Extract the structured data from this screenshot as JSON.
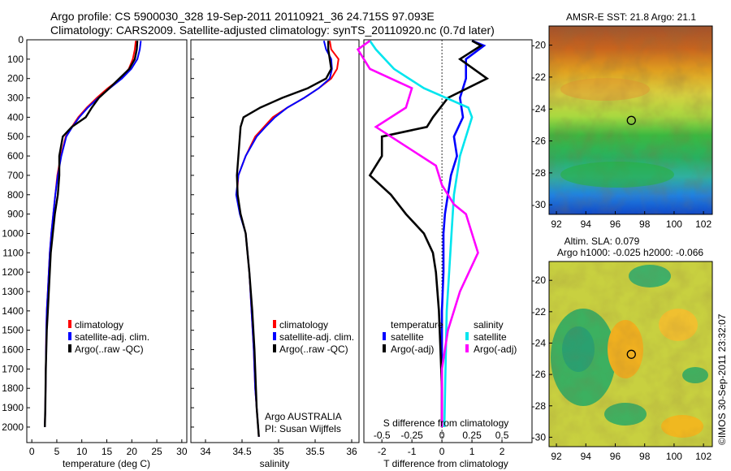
{
  "header": {
    "line1": "Argo profile: CS 5900030_328 19-Sep-2011 20110921_36 24.715S 97.093E",
    "line2": "Climatology: CARS2009. Satellite-adjusted climatology: synTS_20110920.nc (0.7d later)"
  },
  "colors": {
    "climatology": "#ff0000",
    "satellite": "#0000ff",
    "argo": "#000000",
    "salinity_sat": "#00e5ee",
    "salinity_argo": "#ff00ff"
  },
  "chart_data": [
    {
      "type": "line",
      "id": "temperature",
      "xlabel": "temperature (deg C)",
      "ylabel": "",
      "xlim": [
        -1,
        31
      ],
      "ylim": [
        2080,
        0
      ],
      "xticks": [
        0,
        5,
        10,
        15,
        20,
        25,
        30
      ],
      "yticks": [
        0,
        100,
        200,
        300,
        400,
        500,
        600,
        700,
        800,
        900,
        1000,
        1100,
        1200,
        1300,
        1400,
        1500,
        1600,
        1700,
        1800,
        1900,
        2000
      ],
      "legend": [
        "climatology",
        "satellite-adj. clim.",
        "Argo(..raw -QC)"
      ],
      "series": [
        {
          "name": "climatology",
          "color": "#ff0000",
          "x": [
            20.8,
            20.6,
            20.2,
            19.4,
            17.8,
            15.2,
            13.0,
            11.0,
            9.3,
            8.0,
            6.8,
            5.8,
            5.1,
            4.7,
            4.3,
            3.9,
            3.6,
            3.4,
            3.2,
            3.0,
            2.9,
            2.8,
            2.7,
            2.6
          ],
          "y": [
            5,
            50,
            100,
            150,
            200,
            250,
            300,
            350,
            400,
            450,
            500,
            600,
            700,
            800,
            900,
            1000,
            1100,
            1200,
            1300,
            1400,
            1500,
            1700,
            1900,
            2000
          ]
        },
        {
          "name": "satellite-adj. clim.",
          "color": "#0000ff",
          "x": [
            21.8,
            21.6,
            21.1,
            19.9,
            18.0,
            15.6,
            13.3,
            11.2,
            9.5,
            8.1,
            6.9,
            5.9,
            5.2,
            4.7,
            4.3,
            3.9,
            3.6,
            3.4,
            3.2,
            3.0,
            2.9,
            2.8,
            2.7,
            2.6
          ],
          "y": [
            5,
            50,
            100,
            150,
            200,
            250,
            300,
            350,
            400,
            450,
            500,
            600,
            700,
            800,
            900,
            1000,
            1100,
            1200,
            1300,
            1400,
            1500,
            1700,
            1900,
            2000
          ]
        },
        {
          "name": "Argo(..raw -QC)",
          "color": "#000000",
          "x": [
            21.1,
            21.0,
            20.6,
            19.5,
            17.5,
            15.5,
            13.4,
            12.0,
            10.8,
            8.0,
            6.2,
            5.5,
            5.5,
            5.2,
            4.6,
            4.2,
            3.8,
            3.6,
            3.4,
            3.2,
            3.0,
            2.9,
            2.8,
            2.7,
            2.6
          ],
          "y": [
            5,
            50,
            100,
            150,
            200,
            250,
            300,
            350,
            400,
            450,
            500,
            600,
            700,
            800,
            900,
            1000,
            1100,
            1200,
            1300,
            1400,
            1500,
            1600,
            1700,
            1900,
            2000
          ]
        }
      ]
    },
    {
      "type": "line",
      "id": "salinity",
      "xlabel": "salinity",
      "xlim": [
        33.8,
        36.1
      ],
      "ylim": [
        2080,
        0
      ],
      "xticks": [
        34,
        34.5,
        35,
        35.5,
        36
      ],
      "legend": [
        "climatology",
        "satellite-adj. clim.",
        "Argo(..raw -QC)"
      ],
      "annotation": [
        "Argo AUSTRALIA",
        "PI: Susan Wijffels"
      ],
      "series": [
        {
          "name": "climatology",
          "color": "#ff0000",
          "x": [
            35.7,
            35.72,
            35.82,
            35.8,
            35.72,
            35.55,
            35.35,
            35.12,
            34.92,
            34.8,
            34.68,
            34.55,
            34.45,
            34.43,
            34.48,
            34.55,
            34.6,
            34.63,
            34.66,
            34.68,
            34.7,
            34.72,
            34.73
          ],
          "y": [
            5,
            50,
            100,
            150,
            200,
            250,
            300,
            350,
            400,
            450,
            500,
            600,
            700,
            800,
            900,
            1000,
            1200,
            1400,
            1600,
            1800,
            1900,
            2000,
            2050
          ]
        },
        {
          "name": "satellite-adj. clim.",
          "color": "#0000ff",
          "x": [
            35.62,
            35.65,
            35.72,
            35.73,
            35.7,
            35.55,
            35.35,
            35.12,
            34.95,
            34.82,
            34.7,
            34.55,
            34.45,
            34.42,
            34.47,
            34.55,
            34.6,
            34.63,
            34.66,
            34.68,
            34.7,
            34.72,
            34.73
          ],
          "y": [
            5,
            50,
            100,
            150,
            200,
            250,
            300,
            350,
            400,
            450,
            500,
            600,
            700,
            800,
            900,
            1000,
            1200,
            1400,
            1600,
            1800,
            1900,
            2000,
            2050
          ]
        },
        {
          "name": "Argo(..raw -QC)",
          "color": "#000000",
          "x": [
            35.68,
            35.68,
            35.7,
            35.72,
            35.65,
            35.4,
            35.05,
            34.75,
            34.52,
            34.48,
            34.47,
            34.45,
            34.43,
            34.44,
            34.48,
            34.55,
            34.6,
            34.64,
            34.67,
            34.69,
            34.7,
            34.72,
            34.73
          ],
          "y": [
            5,
            50,
            100,
            150,
            200,
            250,
            300,
            350,
            400,
            450,
            500,
            600,
            700,
            800,
            900,
            1000,
            1200,
            1400,
            1600,
            1800,
            1900,
            2000,
            2050
          ]
        }
      ]
    },
    {
      "type": "line",
      "id": "differences",
      "xlabel": "T difference from climatology",
      "xlabel_top": "S difference from climatology",
      "xlim": [
        -2.6,
        3.0
      ],
      "ylim": [
        2080,
        0
      ],
      "xticks": [
        -2,
        -1,
        0,
        1,
        2
      ],
      "sticks": [
        "-0.5",
        "-0.25",
        "0",
        "0.25",
        "0.5"
      ],
      "legend_headers": [
        "temperature",
        "salinity"
      ],
      "legend": [
        "satellite",
        "Argo(-adj)",
        "satellite",
        "Argo(-adj)"
      ],
      "series": [
        {
          "name": "temperature satellite",
          "color": "#0000ff",
          "x": [
            1.0,
            1.4,
            0.8,
            0.8,
            0.6,
            0.7,
            0.4,
            0.5,
            0.3,
            0.2,
            0.1,
            0.05,
            0.05,
            0.0,
            0.0,
            0.0,
            0.0
          ],
          "y": [
            5,
            30,
            100,
            200,
            300,
            400,
            500,
            600,
            700,
            800,
            900,
            1000,
            1200,
            1400,
            1600,
            1800,
            2000
          ]
        },
        {
          "name": "temperature Argo(-adj)",
          "color": "#000000",
          "x": [
            1.0,
            1.3,
            0.6,
            1.5,
            0.2,
            -0.3,
            -0.5,
            -2.0,
            -2.0,
            -2.4,
            -1.7,
            -1.2,
            -0.6,
            -0.3,
            -0.2,
            -0.1,
            -0.05,
            0.0,
            0.0
          ],
          "y": [
            5,
            30,
            100,
            200,
            300,
            400,
            450,
            500,
            600,
            700,
            800,
            900,
            1000,
            1100,
            1200,
            1400,
            1600,
            1800,
            2000
          ]
        },
        {
          "name": "salinity satellite",
          "color": "#00e5ee",
          "x": [
            -0.6,
            -0.55,
            -0.4,
            -0.15,
            0.22,
            0.25,
            0.2,
            0.15,
            0.1,
            0.08,
            0.06,
            0.04,
            0.03,
            0.02
          ],
          "y": [
            5,
            50,
            150,
            250,
            350,
            400,
            500,
            600,
            800,
            1000,
            1200,
            1400,
            1700,
            2000
          ]
        },
        {
          "name": "salinity Argo(-adj)",
          "color": "#ff00ff",
          "x": [
            -0.6,
            -0.7,
            -0.6,
            -0.25,
            -0.3,
            -0.55,
            -0.3,
            -0.05,
            0.0,
            0.1,
            0.2,
            0.25,
            0.3,
            0.15,
            0.05,
            0.0,
            0.0
          ],
          "y": [
            5,
            50,
            150,
            250,
            350,
            450,
            550,
            650,
            750,
            850,
            900,
            1000,
            1100,
            1300,
            1500,
            1700,
            2000
          ]
        }
      ]
    },
    {
      "type": "heatmap",
      "id": "sst_map",
      "title": "AMSR-E SST: 21.8 Argo: 21.1",
      "xlim": [
        91.5,
        102.6
      ],
      "ylim": [
        -30.6,
        -18.8
      ],
      "xticks": [
        92,
        94,
        96,
        98,
        100,
        102
      ],
      "yticks": [
        -20,
        -22,
        -24,
        -26,
        -28,
        -30
      ],
      "marker": {
        "lon": 97.093,
        "lat": -24.715
      }
    },
    {
      "type": "heatmap",
      "id": "sla_map",
      "title_lines": [
        "Altim. SLA: 0.079",
        "Argo h1000: -0.025 h2000: -0.066"
      ],
      "xlim": [
        91.5,
        102.6
      ],
      "ylim": [
        -30.6,
        -18.8
      ],
      "xticks": [
        92,
        94,
        96,
        98,
        100,
        102
      ],
      "yticks": [
        -20,
        -22,
        -24,
        -26,
        -28,
        -30
      ],
      "marker": {
        "lon": 97.093,
        "lat": -24.715
      }
    }
  ],
  "footer": {
    "stamp": "©IMOS 30-Sep-2011 23:32:07"
  }
}
